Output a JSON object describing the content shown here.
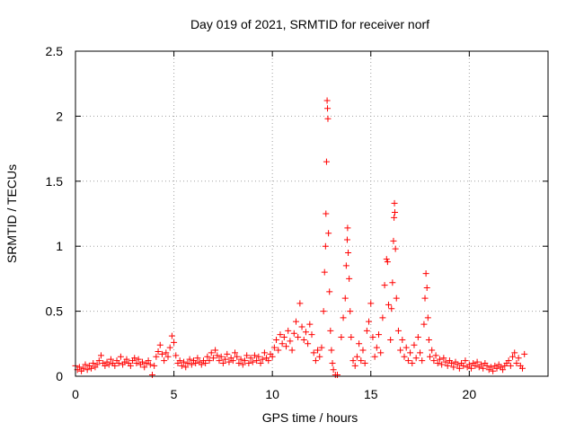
{
  "chart_data": {
    "type": "scatter",
    "title": "Day 019 of 2021, SRMTID for receiver norf",
    "xlabel": "GPS time / hours",
    "ylabel": "SRMTID / TECUs",
    "xlim": [
      0,
      24
    ],
    "ylim": [
      0,
      2.5
    ],
    "x_ticks": [
      0,
      5,
      10,
      15,
      20
    ],
    "x_tick_labels": [
      "0",
      "5",
      "10",
      "15",
      "20"
    ],
    "y_ticks": [
      0,
      0.5,
      1,
      1.5,
      2,
      2.5
    ],
    "y_tick_labels": [
      "0",
      "0.5",
      "1",
      "1.5",
      "2",
      "2.5"
    ],
    "grid": true,
    "marker": "plus",
    "color": "#ff0000",
    "series": [
      {
        "name": "SRMTID",
        "points": [
          [
            0.0,
            0.08
          ],
          [
            0.1,
            0.05
          ],
          [
            0.2,
            0.07
          ],
          [
            0.3,
            0.04
          ],
          [
            0.4,
            0.06
          ],
          [
            0.5,
            0.09
          ],
          [
            0.6,
            0.05
          ],
          [
            0.7,
            0.08
          ],
          [
            0.8,
            0.06
          ],
          [
            0.9,
            0.1
          ],
          [
            1.0,
            0.07
          ],
          [
            1.1,
            0.09
          ],
          [
            1.2,
            0.12
          ],
          [
            1.3,
            0.16
          ],
          [
            1.4,
            0.1
          ],
          [
            1.5,
            0.08
          ],
          [
            1.6,
            0.11
          ],
          [
            1.7,
            0.09
          ],
          [
            1.8,
            0.13
          ],
          [
            1.9,
            0.1
          ],
          [
            2.0,
            0.08
          ],
          [
            2.1,
            0.12
          ],
          [
            2.2,
            0.1
          ],
          [
            2.3,
            0.15
          ],
          [
            2.4,
            0.09
          ],
          [
            2.5,
            0.11
          ],
          [
            2.6,
            0.13
          ],
          [
            2.7,
            0.1
          ],
          [
            2.8,
            0.08
          ],
          [
            2.9,
            0.12
          ],
          [
            3.0,
            0.14
          ],
          [
            3.1,
            0.1
          ],
          [
            3.2,
            0.13
          ],
          [
            3.3,
            0.09
          ],
          [
            3.4,
            0.11
          ],
          [
            3.5,
            0.07
          ],
          [
            3.6,
            0.1
          ],
          [
            3.7,
            0.12
          ],
          [
            3.8,
            0.09
          ],
          [
            3.9,
            0.01
          ],
          [
            4.0,
            0.08
          ],
          [
            4.1,
            0.15
          ],
          [
            4.2,
            0.19
          ],
          [
            4.3,
            0.24
          ],
          [
            4.4,
            0.17
          ],
          [
            4.5,
            0.12
          ],
          [
            4.6,
            0.18
          ],
          [
            4.7,
            0.15
          ],
          [
            4.8,
            0.22
          ],
          [
            4.9,
            0.31
          ],
          [
            5.0,
            0.26
          ],
          [
            5.1,
            0.16
          ],
          [
            5.2,
            0.1
          ],
          [
            5.3,
            0.12
          ],
          [
            5.4,
            0.08
          ],
          [
            5.5,
            0.11
          ],
          [
            5.6,
            0.07
          ],
          [
            5.7,
            0.1
          ],
          [
            5.8,
            0.13
          ],
          [
            5.9,
            0.09
          ],
          [
            6.0,
            0.12
          ],
          [
            6.1,
            0.1
          ],
          [
            6.2,
            0.14
          ],
          [
            6.3,
            0.11
          ],
          [
            6.4,
            0.09
          ],
          [
            6.5,
            0.12
          ],
          [
            6.6,
            0.1
          ],
          [
            6.7,
            0.15
          ],
          [
            6.8,
            0.12
          ],
          [
            6.9,
            0.18
          ],
          [
            7.0,
            0.14
          ],
          [
            7.1,
            0.2
          ],
          [
            7.2,
            0.16
          ],
          [
            7.3,
            0.12
          ],
          [
            7.4,
            0.15
          ],
          [
            7.5,
            0.1
          ],
          [
            7.6,
            0.13
          ],
          [
            7.7,
            0.17
          ],
          [
            7.8,
            0.11
          ],
          [
            7.9,
            0.14
          ],
          [
            8.0,
            0.12
          ],
          [
            8.1,
            0.18
          ],
          [
            8.2,
            0.15
          ],
          [
            8.3,
            0.1
          ],
          [
            8.4,
            0.13
          ],
          [
            8.5,
            0.09
          ],
          [
            8.6,
            0.12
          ],
          [
            8.7,
            0.16
          ],
          [
            8.8,
            0.1
          ],
          [
            8.9,
            0.14
          ],
          [
            9.0,
            0.11
          ],
          [
            9.1,
            0.16
          ],
          [
            9.2,
            0.12
          ],
          [
            9.3,
            0.15
          ],
          [
            9.4,
            0.1
          ],
          [
            9.5,
            0.13
          ],
          [
            9.6,
            0.18
          ],
          [
            9.7,
            0.14
          ],
          [
            9.8,
            0.12
          ],
          [
            9.9,
            0.17
          ],
          [
            10.0,
            0.15
          ],
          [
            10.1,
            0.22
          ],
          [
            10.2,
            0.28
          ],
          [
            10.3,
            0.2
          ],
          [
            10.4,
            0.32
          ],
          [
            10.5,
            0.25
          ],
          [
            10.6,
            0.3
          ],
          [
            10.7,
            0.23
          ],
          [
            10.8,
            0.35
          ],
          [
            10.9,
            0.27
          ],
          [
            11.0,
            0.2
          ],
          [
            11.1,
            0.33
          ],
          [
            11.2,
            0.42
          ],
          [
            11.3,
            0.3
          ],
          [
            11.4,
            0.56
          ],
          [
            11.5,
            0.38
          ],
          [
            11.6,
            0.28
          ],
          [
            11.7,
            0.34
          ],
          [
            11.8,
            0.25
          ],
          [
            11.9,
            0.4
          ],
          [
            12.0,
            0.32
          ],
          [
            12.1,
            0.18
          ],
          [
            12.2,
            0.12
          ],
          [
            12.3,
            0.2
          ],
          [
            12.4,
            0.15
          ],
          [
            12.5,
            0.22
          ],
          [
            12.6,
            0.5
          ],
          [
            12.65,
            0.8
          ],
          [
            12.7,
            1.0
          ],
          [
            12.72,
            1.25
          ],
          [
            12.75,
            1.65
          ],
          [
            12.78,
            2.12
          ],
          [
            12.8,
            2.06
          ],
          [
            12.82,
            1.98
          ],
          [
            12.85,
            1.1
          ],
          [
            12.9,
            0.65
          ],
          [
            12.95,
            0.35
          ],
          [
            13.0,
            0.2
          ],
          [
            13.05,
            0.1
          ],
          [
            13.1,
            0.05
          ],
          [
            13.2,
            0.01
          ],
          [
            13.3,
            0.01
          ],
          [
            13.5,
            0.3
          ],
          [
            13.6,
            0.45
          ],
          [
            13.7,
            0.6
          ],
          [
            13.75,
            0.85
          ],
          [
            13.8,
            1.05
          ],
          [
            13.82,
            1.14
          ],
          [
            13.85,
            0.95
          ],
          [
            13.9,
            0.75
          ],
          [
            13.95,
            0.5
          ],
          [
            14.0,
            0.3
          ],
          [
            14.1,
            0.12
          ],
          [
            14.2,
            0.08
          ],
          [
            14.3,
            0.15
          ],
          [
            14.4,
            0.25
          ],
          [
            14.5,
            0.12
          ],
          [
            14.6,
            0.2
          ],
          [
            14.7,
            0.1
          ],
          [
            14.8,
            0.35
          ],
          [
            14.9,
            0.42
          ],
          [
            15.0,
            0.56
          ],
          [
            15.1,
            0.3
          ],
          [
            15.2,
            0.15
          ],
          [
            15.3,
            0.22
          ],
          [
            15.4,
            0.32
          ],
          [
            15.5,
            0.18
          ],
          [
            15.6,
            0.45
          ],
          [
            15.7,
            0.7
          ],
          [
            15.8,
            0.9
          ],
          [
            15.85,
            0.88
          ],
          [
            15.9,
            0.55
          ],
          [
            16.0,
            0.28
          ],
          [
            16.05,
            0.52
          ],
          [
            16.1,
            0.72
          ],
          [
            16.15,
            1.04
          ],
          [
            16.18,
            1.22
          ],
          [
            16.2,
            1.33
          ],
          [
            16.22,
            1.26
          ],
          [
            16.25,
            0.98
          ],
          [
            16.3,
            0.6
          ],
          [
            16.4,
            0.35
          ],
          [
            16.5,
            0.2
          ],
          [
            16.6,
            0.28
          ],
          [
            16.7,
            0.15
          ],
          [
            16.8,
            0.22
          ],
          [
            16.9,
            0.12
          ],
          [
            17.0,
            0.18
          ],
          [
            17.1,
            0.1
          ],
          [
            17.2,
            0.24
          ],
          [
            17.3,
            0.14
          ],
          [
            17.4,
            0.3
          ],
          [
            17.5,
            0.18
          ],
          [
            17.6,
            0.12
          ],
          [
            17.7,
            0.4
          ],
          [
            17.75,
            0.6
          ],
          [
            17.8,
            0.79
          ],
          [
            17.85,
            0.68
          ],
          [
            17.9,
            0.45
          ],
          [
            17.95,
            0.28
          ],
          [
            18.0,
            0.15
          ],
          [
            18.1,
            0.2
          ],
          [
            18.2,
            0.12
          ],
          [
            18.3,
            0.16
          ],
          [
            18.4,
            0.1
          ],
          [
            18.5,
            0.13
          ],
          [
            18.6,
            0.09
          ],
          [
            18.7,
            0.14
          ],
          [
            18.8,
            0.11
          ],
          [
            18.9,
            0.08
          ],
          [
            19.0,
            0.12
          ],
          [
            19.1,
            0.1
          ],
          [
            19.2,
            0.07
          ],
          [
            19.3,
            0.11
          ],
          [
            19.4,
            0.09
          ],
          [
            19.5,
            0.06
          ],
          [
            19.6,
            0.1
          ],
          [
            19.7,
            0.08
          ],
          [
            19.8,
            0.12
          ],
          [
            19.9,
            0.07
          ],
          [
            20.0,
            0.09
          ],
          [
            20.1,
            0.06
          ],
          [
            20.2,
            0.1
          ],
          [
            20.3,
            0.08
          ],
          [
            20.4,
            0.11
          ],
          [
            20.5,
            0.07
          ],
          [
            20.6,
            0.09
          ],
          [
            20.7,
            0.06
          ],
          [
            20.8,
            0.1
          ],
          [
            20.9,
            0.08
          ],
          [
            21.0,
            0.05
          ],
          [
            21.1,
            0.07
          ],
          [
            21.2,
            0.04
          ],
          [
            21.3,
            0.08
          ],
          [
            21.4,
            0.06
          ],
          [
            21.5,
            0.09
          ],
          [
            21.6,
            0.07
          ],
          [
            21.7,
            0.05
          ],
          [
            21.8,
            0.08
          ],
          [
            21.9,
            0.1
          ],
          [
            22.0,
            0.12
          ],
          [
            22.1,
            0.08
          ],
          [
            22.2,
            0.15
          ],
          [
            22.3,
            0.18
          ],
          [
            22.4,
            0.1
          ],
          [
            22.5,
            0.14
          ],
          [
            22.6,
            0.08
          ],
          [
            22.7,
            0.06
          ],
          [
            22.8,
            0.17
          ]
        ]
      }
    ]
  }
}
